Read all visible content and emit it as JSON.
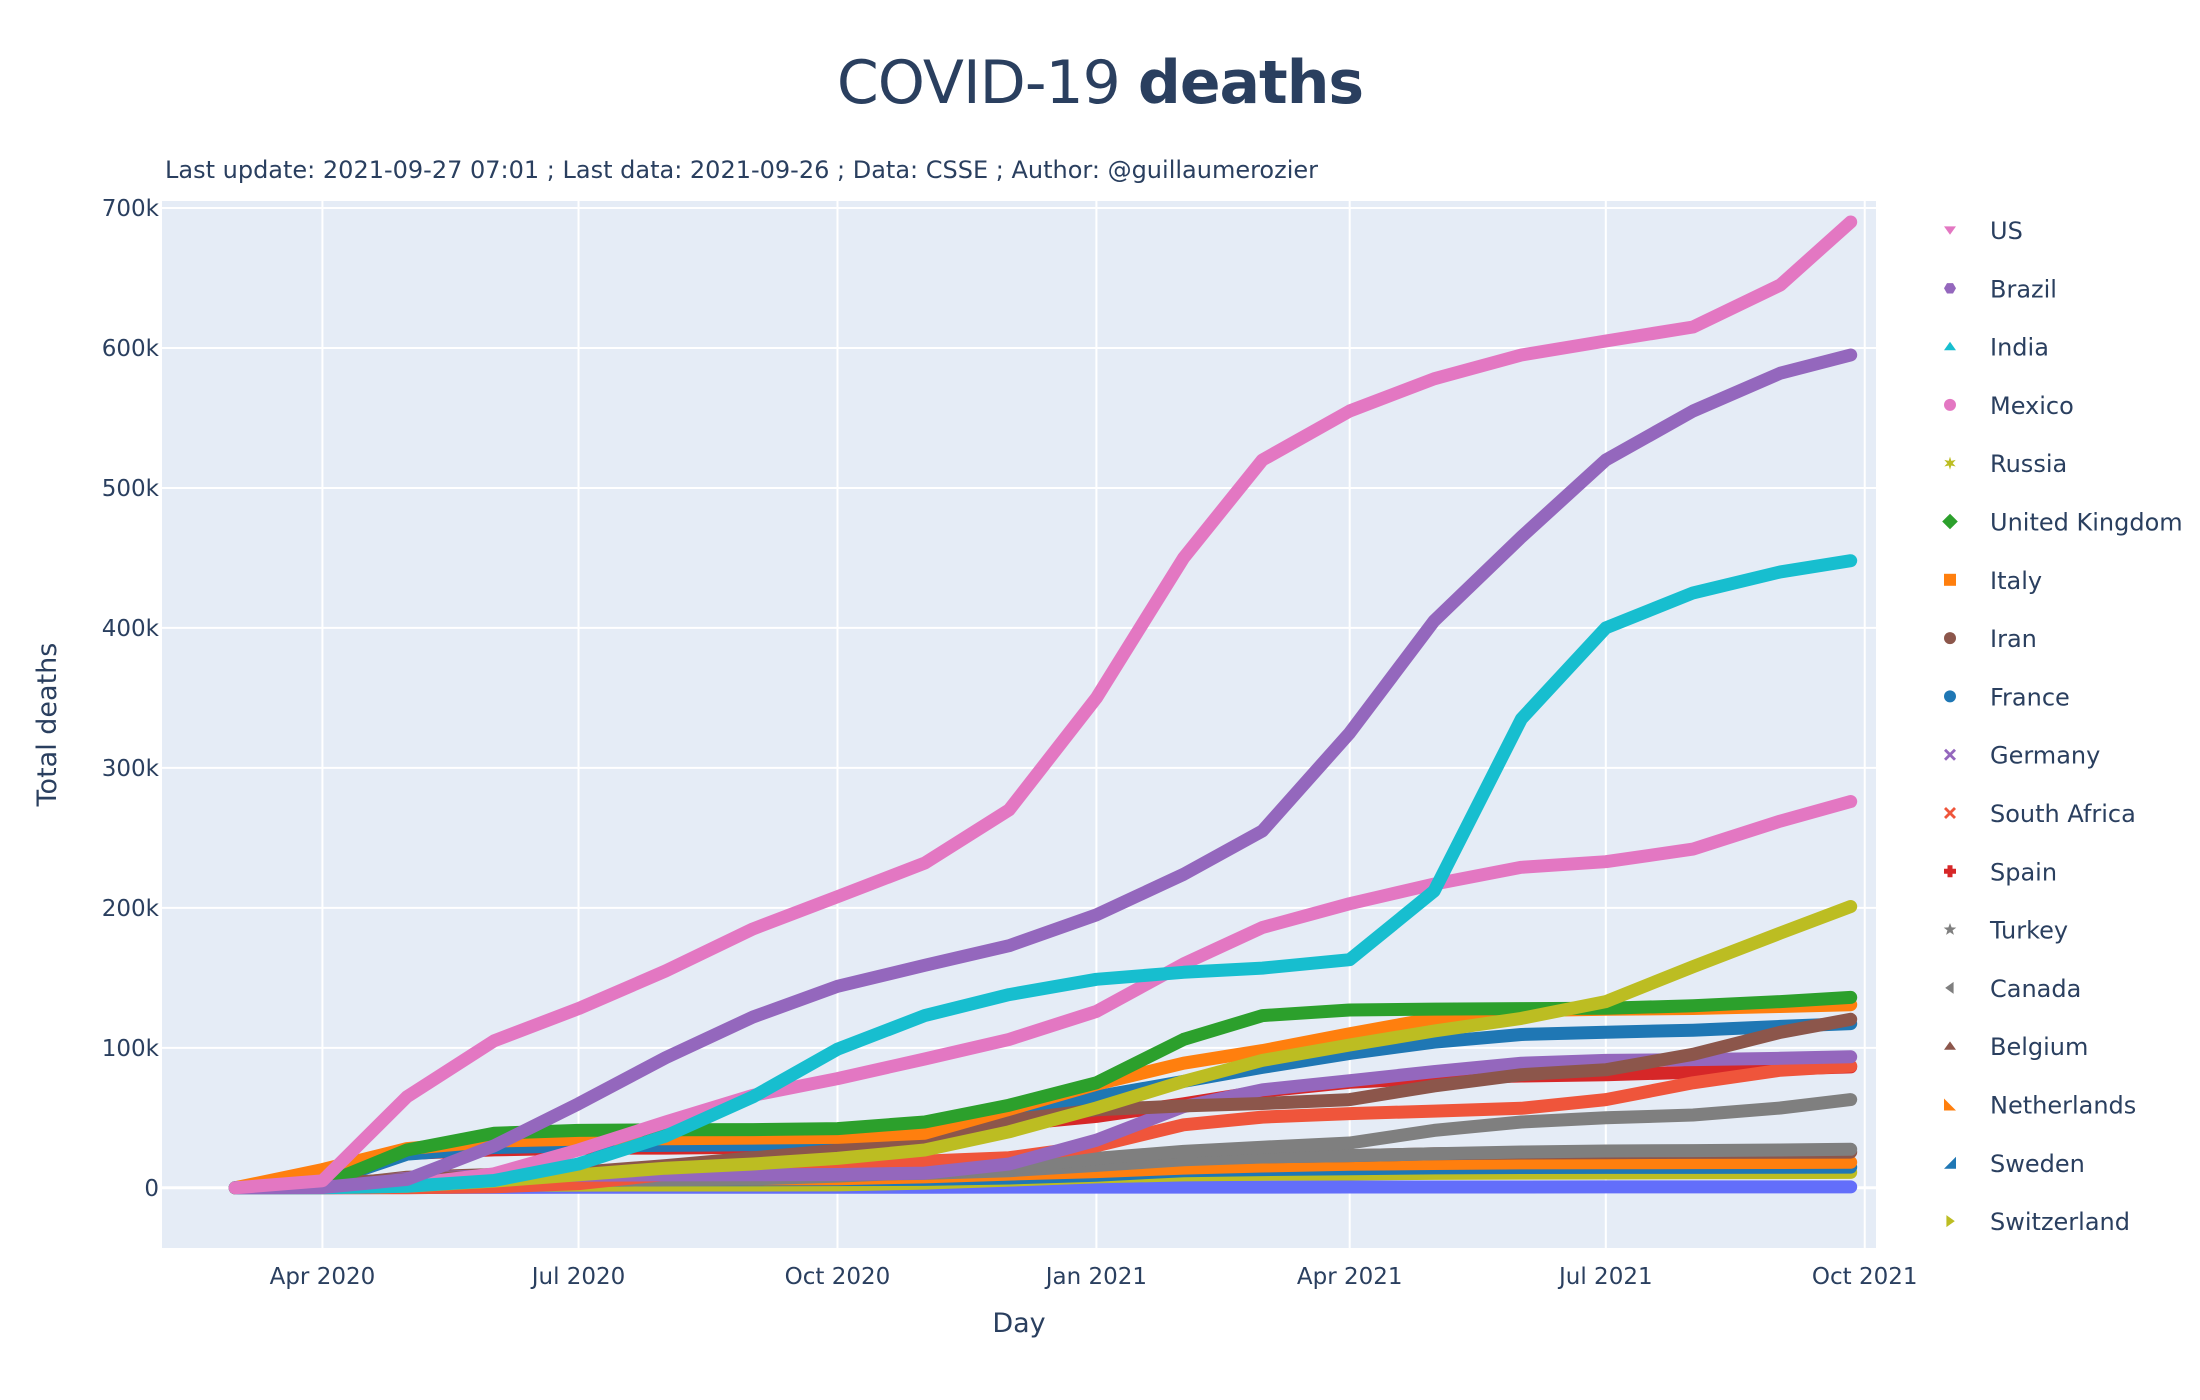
{
  "chart_data": {
    "type": "line",
    "title_regular": "COVID-19 ",
    "title_bold": "deaths",
    "subtitle": "Last update: 2021-09-27 07:01 ; Last data: 2021-09-26 ; Data: CSSE ; Author: @guillaumerozier",
    "xlabel": "Day",
    "ylabel": "Total deaths",
    "xlim": [
      "2020-02-04",
      "2021-10-05"
    ],
    "ylim": [
      -43000,
      705000
    ],
    "grid": true,
    "legend_position": "right",
    "x_ticks": [
      {
        "date": "2020-04-01",
        "label": "Apr 2020"
      },
      {
        "date": "2020-07-01",
        "label": "Jul 2020"
      },
      {
        "date": "2020-10-01",
        "label": "Oct 2020"
      },
      {
        "date": "2021-01-01",
        "label": "Jan 2021"
      },
      {
        "date": "2021-04-01",
        "label": "Apr 2021"
      },
      {
        "date": "2021-07-01",
        "label": "Jul 2021"
      },
      {
        "date": "2021-10-01",
        "label": "Oct 2021"
      }
    ],
    "y_ticks": [
      {
        "value": 0,
        "label": "0"
      },
      {
        "value": 100000,
        "label": "100k"
      },
      {
        "value": 200000,
        "label": "200k"
      },
      {
        "value": 300000,
        "label": "300k"
      },
      {
        "value": 400000,
        "label": "400k"
      },
      {
        "value": 500000,
        "label": "500k"
      },
      {
        "value": 600000,
        "label": "600k"
      },
      {
        "value": 700000,
        "label": "700k"
      }
    ],
    "x": [
      "2020-03-01",
      "2020-04-01",
      "2020-05-01",
      "2020-06-01",
      "2020-07-01",
      "2020-08-01",
      "2020-09-01",
      "2020-10-01",
      "2020-11-01",
      "2020-12-01",
      "2021-01-01",
      "2021-02-01",
      "2021-03-01",
      "2021-04-01",
      "2021-05-01",
      "2021-06-01",
      "2021-07-01",
      "2021-08-01",
      "2021-09-01",
      "2021-09-26"
    ],
    "series": [
      {
        "name": "US",
        "color": "#e377c2",
        "marker": "triangle-down",
        "legend": true,
        "values": [
          0,
          5000,
          65000,
          105000,
          128000,
          155000,
          185000,
          208000,
          232000,
          270000,
          350000,
          450000,
          520000,
          555000,
          578000,
          595000,
          605000,
          615000,
          645000,
          690000
        ]
      },
      {
        "name": "Brazil",
        "color": "#9467bd",
        "marker": "hexagon",
        "legend": true,
        "values": [
          0,
          200,
          6000,
          30000,
          60000,
          93000,
          122000,
          144000,
          159000,
          173000,
          195000,
          224000,
          255000,
          325000,
          405000,
          465000,
          520000,
          555000,
          582000,
          595000
        ]
      },
      {
        "name": "India",
        "color": "#17becf",
        "marker": "triangle-up",
        "legend": true,
        "values": [
          0,
          40,
          1100,
          5200,
          17000,
          37000,
          65000,
          99000,
          123000,
          138000,
          149000,
          154000,
          157000,
          163000,
          212000,
          335000,
          400000,
          425000,
          440000,
          448000
        ]
      },
      {
        "name": "Mexico",
        "color": "#e377c2",
        "marker": "circle",
        "legend": true,
        "values": [
          0,
          30,
          2200,
          10000,
          27000,
          47000,
          66000,
          78000,
          92000,
          106000,
          126000,
          160000,
          186000,
          203000,
          217000,
          229000,
          233000,
          242000,
          262000,
          276000
        ]
      },
      {
        "name": "Russia",
        "color": "#bcbd22",
        "marker": "star-6",
        "legend": true,
        "values": [
          0,
          20,
          1100,
          4800,
          9300,
          14000,
          17000,
          21000,
          27000,
          40000,
          57000,
          76000,
          91000,
          102000,
          112000,
          121000,
          133000,
          158000,
          182000,
          201000
        ]
      },
      {
        "name": "United Kingdom",
        "color": "#2ca02c",
        "marker": "diamond",
        "legend": true,
        "values": [
          0,
          2400,
          27000,
          39000,
          41000,
          41500,
          41600,
          42300,
          47000,
          59000,
          75000,
          106000,
          123000,
          127000,
          127700,
          128000,
          128300,
          130000,
          133000,
          136000
        ]
      },
      {
        "name": "Italy",
        "color": "#ff7f0e",
        "marker": "square",
        "legend": true,
        "values": [
          30,
          13000,
          28000,
          33400,
          34800,
          35100,
          35500,
          36000,
          39000,
          56000,
          74000,
          89000,
          98000,
          110000,
          121000,
          126500,
          127600,
          128100,
          129500,
          130800
        ]
      },
      {
        "name": "Iran",
        "color": "#8c564b",
        "marker": "circle",
        "legend": true,
        "values": [
          50,
          3000,
          6100,
          7900,
          11100,
          15900,
          21400,
          26900,
          35700,
          48200,
          55700,
          58500,
          60200,
          63000,
          72800,
          80800,
          84300,
          95400,
          111100,
          120400
        ]
      },
      {
        "name": "France",
        "color": "#1f77b4",
        "marker": "circle",
        "legend": true,
        "values": [
          2,
          3500,
          24000,
          28800,
          29900,
          30300,
          30700,
          32200,
          37000,
          53000,
          65000,
          76000,
          86000,
          96000,
          104000,
          109500,
          111200,
          112600,
          115300,
          117300
        ]
      },
      {
        "name": "Germany",
        "color": "#9467bd",
        "marker": "x",
        "legend": true,
        "values": [
          0,
          900,
          6700,
          8600,
          9000,
          9200,
          9300,
          9500,
          10500,
          17000,
          34000,
          58000,
          70000,
          76500,
          83000,
          89000,
          91000,
          91600,
          92500,
          93600
        ]
      },
      {
        "name": "South Africa",
        "color": "#ef553b",
        "marker": "x-thin",
        "legend": true,
        "values": [
          0,
          5,
          100,
          700,
          3000,
          9600,
          14400,
          16900,
          19100,
          21500,
          30000,
          45000,
          50500,
          53000,
          54800,
          56800,
          63000,
          75000,
          84000,
          87000
        ]
      },
      {
        "name": "Spain",
        "color": "#d62728",
        "marker": "cross",
        "legend": true,
        "values": [
          0,
          9000,
          24500,
          27100,
          28300,
          28400,
          29000,
          32000,
          36200,
          45000,
          51000,
          60000,
          69000,
          75400,
          78400,
          79900,
          80800,
          82500,
          84800,
          86400
        ]
      },
      {
        "name": "Turkey",
        "color": "#7f7f7f",
        "marker": "star",
        "legend": true,
        "values": [
          0,
          200,
          3300,
          4600,
          5300,
          5700,
          6400,
          8400,
          11000,
          14000,
          21000,
          26000,
          29000,
          32000,
          41000,
          47000,
          50000,
          52000,
          57000,
          63000
        ]
      },
      {
        "name": "Canada",
        "color": "#7f7f7f",
        "marker": "triangle-left",
        "legend": true,
        "values": [
          0,
          100,
          3500,
          7300,
          8600,
          8900,
          9100,
          9400,
          10300,
          12200,
          16000,
          20000,
          22000,
          23000,
          24300,
          25600,
          26300,
          26600,
          27000,
          27500
        ]
      },
      {
        "name": "Belgium",
        "color": "#8c564b",
        "marker": "triangle-up",
        "legend": true,
        "values": [
          0,
          800,
          7600,
          9500,
          9800,
          9900,
          9900,
          10100,
          12000,
          17000,
          19600,
          21000,
          22100,
          23000,
          24300,
          24900,
          25100,
          25300,
          25400,
          25500
        ]
      },
      {
        "name": "Netherlands",
        "color": "#ff7f0e",
        "marker": "triangle-se",
        "legend": true,
        "values": [
          0,
          1200,
          4900,
          6000,
          6100,
          6150,
          6250,
          6500,
          7800,
          9800,
          11600,
          14100,
          15600,
          16800,
          17400,
          17800,
          17900,
          18000,
          18100,
          18200
        ]
      },
      {
        "name": "Sweden",
        "color": "#1f77b4",
        "marker": "triangle-sw",
        "legend": true,
        "values": [
          0,
          200,
          2600,
          4400,
          5400,
          5700,
          5800,
          5900,
          6000,
          7000,
          9000,
          12200,
          13000,
          13600,
          14200,
          14500,
          14600,
          14600,
          14700,
          14800
        ]
      },
      {
        "name": "Switzerland",
        "color": "#bcbd22",
        "marker": "triangle-right",
        "legend": true,
        "values": [
          0,
          400,
          1700,
          1900,
          1950,
          1980,
          2000,
          2100,
          3400,
          5500,
          7800,
          9200,
          9700,
          9900,
          10300,
          10500,
          10600,
          10700,
          10900,
          11000
        ]
      },
      {
        "name": "Other",
        "color": "#636efa",
        "marker": "triangle-down",
        "legend": false,
        "values": [
          0,
          50,
          200,
          300,
          350,
          380,
          400,
          420,
          450,
          480,
          500,
          520,
          540,
          560,
          580,
          600,
          620,
          640,
          660,
          680
        ]
      }
    ]
  }
}
